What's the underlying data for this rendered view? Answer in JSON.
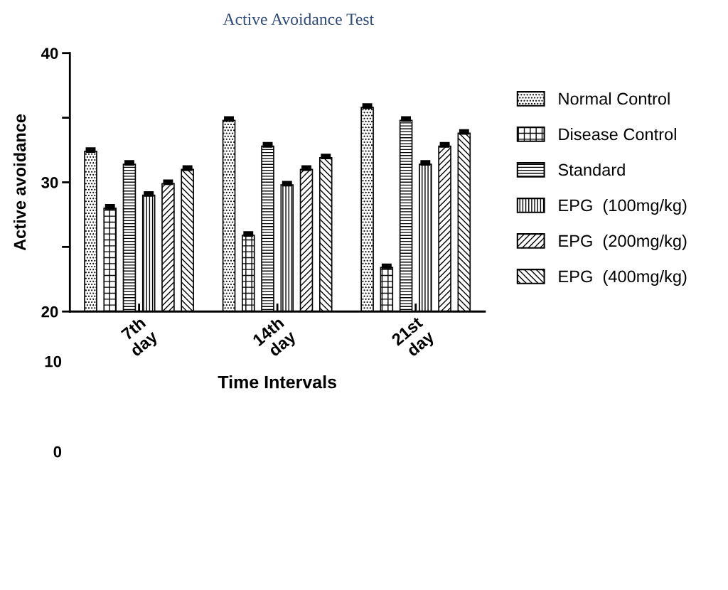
{
  "chart_data": {
    "type": "bar",
    "title": "Active Avoidance Test",
    "xlabel": "Time Intervals",
    "ylabel": "Active avoidance",
    "categories": [
      "7th\nday",
      "14th\nday",
      "21st\nday"
    ],
    "series": [
      {
        "name": "Normal Control",
        "color": "#000000",
        "values": [
          32.4,
          34.8,
          35.8
        ],
        "errors": [
          0.2,
          0.2,
          0.2
        ]
      },
      {
        "name": "Disease Control",
        "color": "#000000",
        "values": [
          28.0,
          25.9,
          23.4
        ],
        "errors": [
          0.2,
          0.2,
          0.2
        ]
      },
      {
        "name": "Standard",
        "color": "#000000",
        "values": [
          31.4,
          32.8,
          34.8
        ],
        "errors": [
          0.2,
          0.2,
          0.2
        ]
      },
      {
        "name": "EPG  (100mg/kg)",
        "color": "#000000",
        "values": [
          29.0,
          29.8,
          31.4
        ],
        "errors": [
          0.2,
          0.2,
          0.2
        ]
      },
      {
        "name": "EPG  (200mg/kg)",
        "color": "#000000",
        "values": [
          29.9,
          31.0,
          32.8
        ],
        "errors": [
          0.2,
          0.2,
          0.2
        ]
      },
      {
        "name": "EPG  (400mg/kg)",
        "color": "#000000",
        "values": [
          31.0,
          31.9,
          33.8
        ],
        "errors": [
          0.2,
          0.2,
          0.2
        ]
      }
    ],
    "ylim": [
      20,
      40
    ],
    "yticks": [
      40,
      {
        "value": 35,
        "label": null
      },
      30,
      {
        "value": 25,
        "label": null
      },
      20
    ],
    "annotations": [
      "10",
      "0"
    ],
    "legend": "right",
    "grid": false
  }
}
